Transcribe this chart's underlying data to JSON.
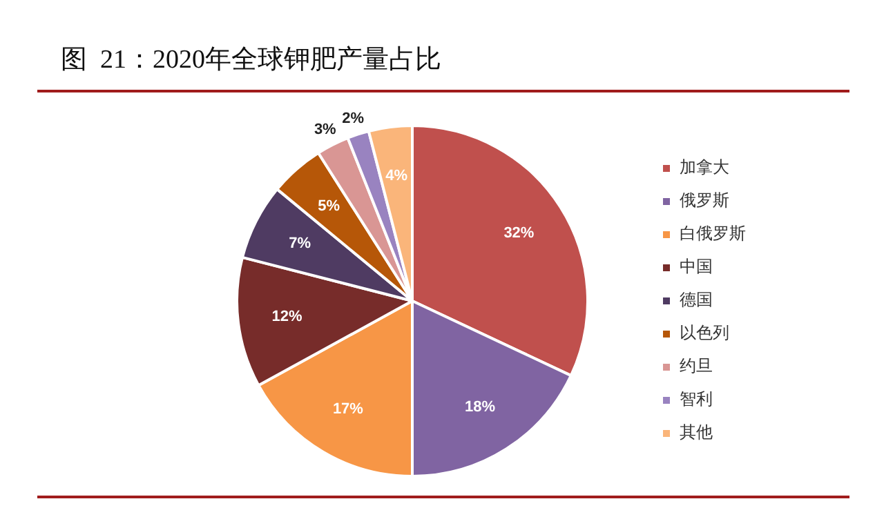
{
  "chart_data": {
    "type": "pie",
    "title": "图  21：2020年全球钾肥产量占比",
    "categories": [
      "加拿大",
      "俄罗斯",
      "白俄罗斯",
      "中国",
      "德国",
      "以色列",
      "约旦",
      "智利",
      "其他"
    ],
    "values": [
      32,
      18,
      17,
      12,
      7,
      5,
      3,
      2,
      4
    ],
    "colors": [
      "#c0504d",
      "#8064a2",
      "#f79646",
      "#772c2a",
      "#4f3b62",
      "#b65708",
      "#d99694",
      "#9983c0",
      "#fab57a"
    ],
    "value_labels": [
      "32%",
      "18%",
      "17%",
      "12%",
      "7%",
      "5%",
      "3%",
      "2%",
      "4%"
    ],
    "legend": "right"
  }
}
